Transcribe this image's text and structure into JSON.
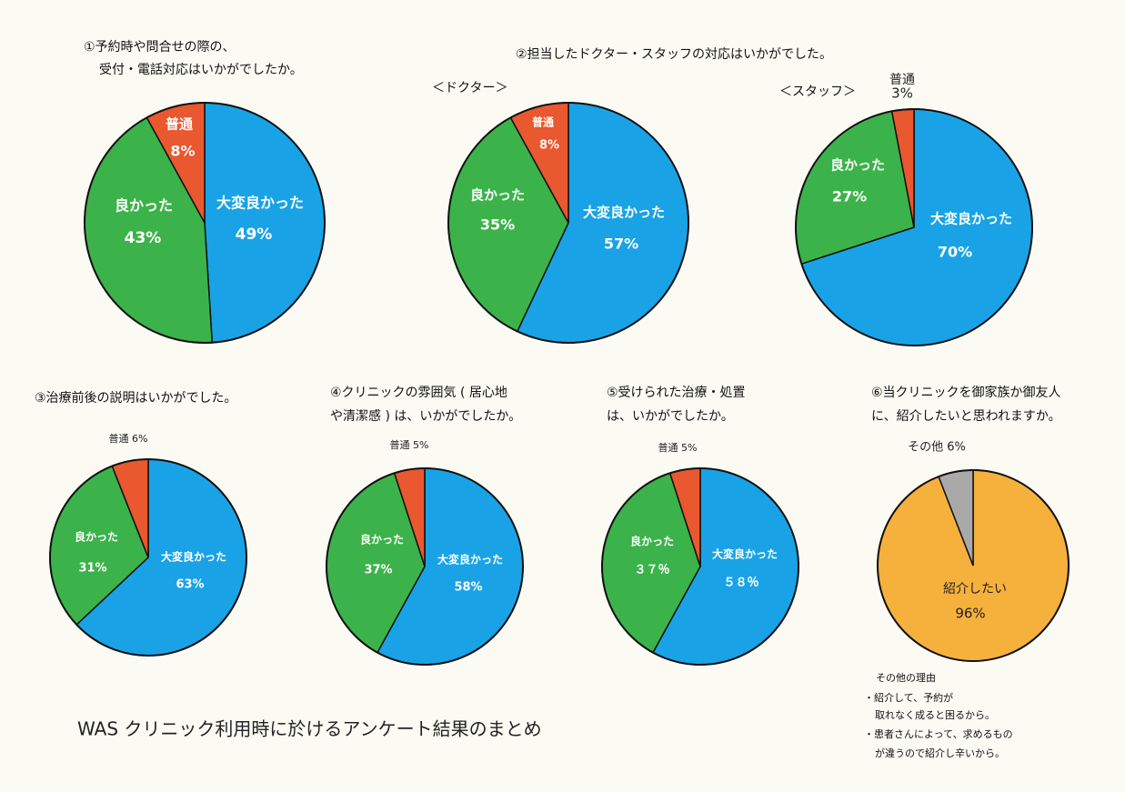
{
  "main_title": "WAS クリニック利用時に於けるアンケート結果のまとめ",
  "group_title": "②担当したドクター・スタッフの対応はいかがでした。",
  "notes": [
    "その他の理由",
    "・紹介して、予約が",
    "取れなく成ると困るから。",
    "・患者さんによって、求めるもの",
    "が違うので紹介し辛いから。"
  ],
  "chart_data": [
    {
      "type": "pie",
      "title": [
        "①予約時や問合せの際の、",
        "受付・電話対応はいかがでしたか。"
      ],
      "categories": [
        "大変良かった",
        "良かった",
        "普通"
      ],
      "values": [
        49,
        43,
        8
      ],
      "value_labels": [
        "49%",
        "43%",
        "8%"
      ],
      "colors": [
        "#19a3e6",
        "#3bb34a",
        "#e9582e"
      ]
    },
    {
      "type": "pie",
      "subtitle": "＜ドクター＞",
      "categories": [
        "大変良かった",
        "良かった",
        "普通"
      ],
      "values": [
        57,
        35,
        8
      ],
      "value_labels": [
        "57%",
        "35%",
        "8%"
      ],
      "colors": [
        "#19a3e6",
        "#3bb34a",
        "#e9582e"
      ]
    },
    {
      "type": "pie",
      "subtitle": "＜スタッフ＞",
      "categories": [
        "大変良かった",
        "良かった",
        "普通"
      ],
      "values": [
        70,
        27,
        3
      ],
      "value_labels": [
        "70%",
        "27%",
        "3%"
      ],
      "colors": [
        "#19a3e6",
        "#3bb34a",
        "#e9582e"
      ]
    },
    {
      "type": "pie",
      "title": [
        "③治療前後の説明はいかがでした。"
      ],
      "categories": [
        "大変良かった",
        "良かった",
        "普通 6%"
      ],
      "values": [
        63,
        31,
        6
      ],
      "value_labels": [
        "63%",
        "31%",
        null
      ],
      "colors": [
        "#19a3e6",
        "#3bb34a",
        "#e9582e"
      ]
    },
    {
      "type": "pie",
      "title": [
        "④クリニックの雰囲気 ( 居心地",
        "や清潔感 ) は、いかがでしたか。"
      ],
      "categories": [
        "大変良かった",
        "良かった",
        "普通 5%"
      ],
      "values": [
        58,
        37,
        5
      ],
      "value_labels": [
        "58%",
        "37%",
        null
      ],
      "colors": [
        "#19a3e6",
        "#3bb34a",
        "#e9582e"
      ]
    },
    {
      "type": "pie",
      "title": [
        "⑤受けられた治療・処置",
        "は、いかがでしたか。"
      ],
      "categories": [
        "大変良かった",
        "良かった",
        "普通 5%"
      ],
      "values": [
        58,
        37,
        5
      ],
      "value_labels": [
        "５８％",
        "３７％",
        null
      ],
      "colors": [
        "#19a3e6",
        "#3bb34a",
        "#e9582e"
      ]
    },
    {
      "type": "pie",
      "title": [
        "⑥当クリニックを御家族か御友人",
        "に、紹介したいと思われますか。"
      ],
      "categories": [
        "紹介したい",
        "その他 6%"
      ],
      "values": [
        96,
        6
      ],
      "value_labels": [
        "96%",
        null
      ],
      "colors": [
        "#f6b03c",
        "#a9a9a9"
      ]
    }
  ]
}
